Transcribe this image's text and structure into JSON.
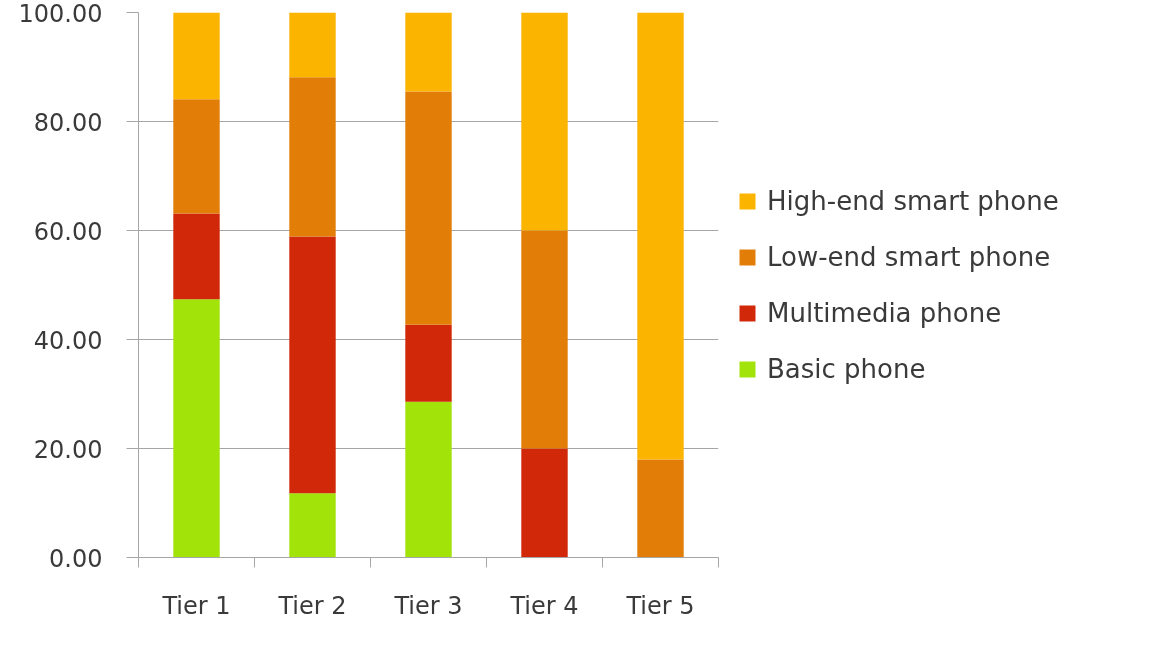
{
  "chart_data": {
    "type": "bar",
    "stacked": true,
    "categories": [
      "Tier 1",
      "Tier 2",
      "Tier 3",
      "Tier 4",
      "Tier 5"
    ],
    "series": [
      {
        "name": "Basic phone",
        "color": "#a2e30a",
        "values": [
          47.4,
          11.8,
          28.6,
          0,
          0
        ]
      },
      {
        "name": "Multimedia phone",
        "color": "#d02808",
        "values": [
          15.7,
          47.1,
          14.1,
          20,
          0
        ]
      },
      {
        "name": "Low-end smart phone",
        "color": "#e27d08",
        "values": [
          21.0,
          29.2,
          42.8,
          40,
          18
        ]
      },
      {
        "name": "High-end smart phone",
        "color": "#fbb400",
        "values": [
          15.9,
          11.9,
          14.5,
          40,
          82
        ]
      }
    ],
    "ylim": [
      0,
      100
    ],
    "yticks": [
      {
        "value": 0,
        "label": "0.00"
      },
      {
        "value": 20,
        "label": "20.00"
      },
      {
        "value": 40,
        "label": "40.00"
      },
      {
        "value": 60,
        "label": "60.00"
      },
      {
        "value": 80,
        "label": "80.00"
      },
      {
        "value": 100,
        "label": "100.00"
      }
    ],
    "grid": "y",
    "legend": "right"
  }
}
